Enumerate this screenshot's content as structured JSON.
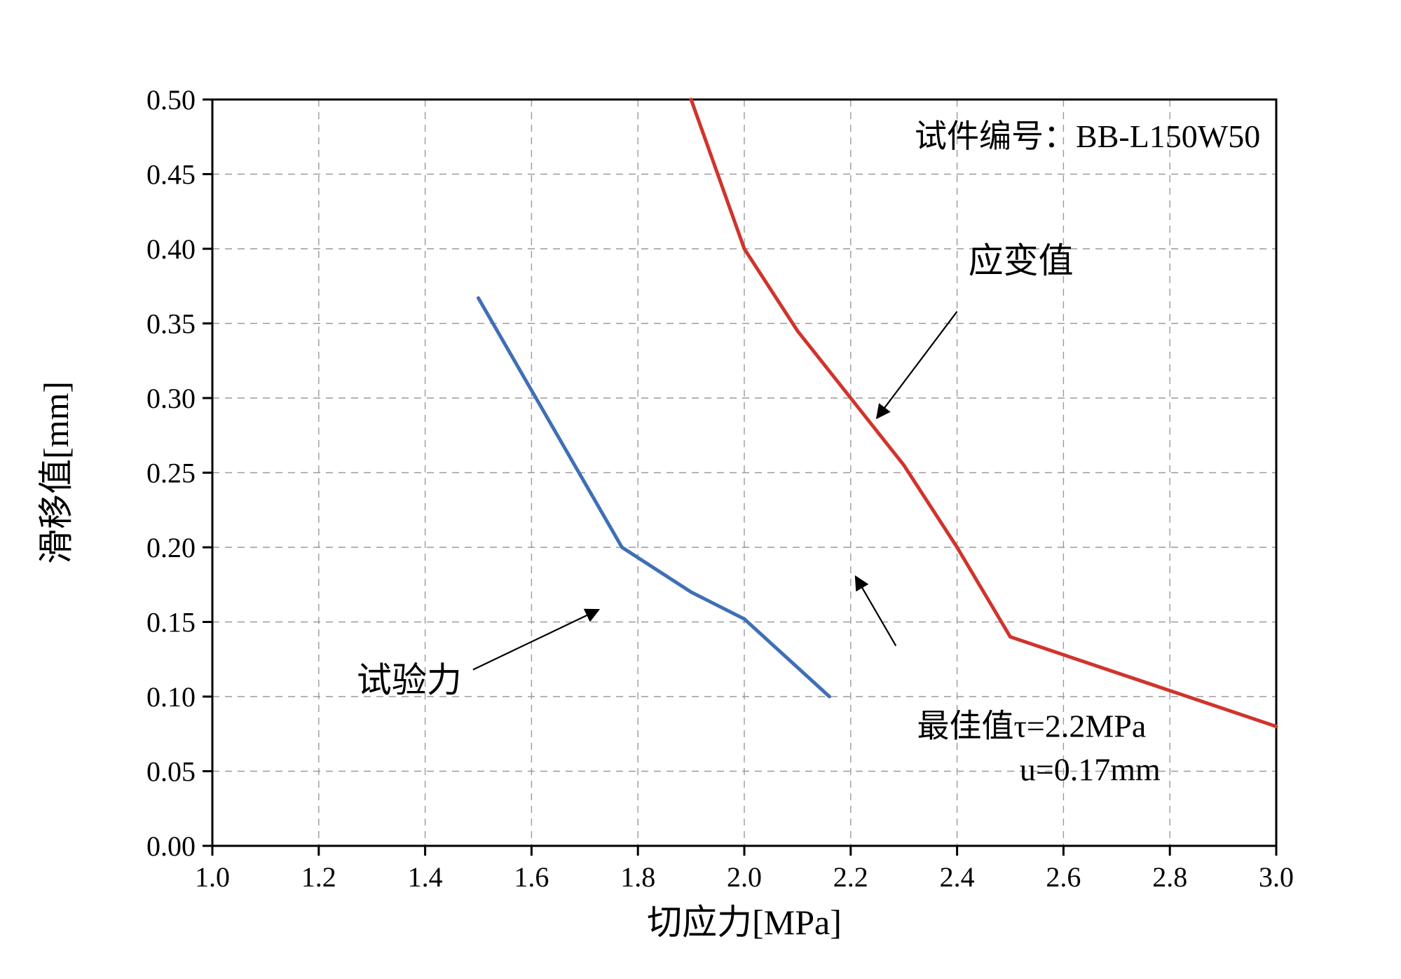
{
  "chart_data": {
    "type": "line",
    "title": "",
    "xlabel": "切应力[MPa]",
    "ylabel": "滑移值[mm]",
    "xlim": [
      1.0,
      3.0
    ],
    "ylim": [
      0.0,
      0.5
    ],
    "x_ticks": [
      1.0,
      1.2,
      1.4,
      1.6,
      1.8,
      2.0,
      2.2,
      2.4,
      2.6,
      2.8,
      3.0
    ],
    "x_tick_labels": [
      "1.0",
      "1.2",
      "1.4",
      "1.6",
      "1.8",
      "2.0",
      "2.2",
      "2.4",
      "2.6",
      "2.8",
      "3.0"
    ],
    "y_ticks": [
      0.0,
      0.05,
      0.1,
      0.15,
      0.2,
      0.25,
      0.3,
      0.35,
      0.4,
      0.45,
      0.5
    ],
    "y_tick_labels": [
      "0.00",
      "0.05",
      "0.10",
      "0.15",
      "0.20",
      "0.25",
      "0.30",
      "0.35",
      "0.40",
      "0.45",
      "0.50"
    ],
    "grid": "dashed",
    "legend_position": "none",
    "series": [
      {
        "name": "试验力",
        "name_en": "test-force-curve",
        "color": "#3f6fb5",
        "points": [
          [
            1.5,
            0.367
          ],
          [
            1.77,
            0.2
          ],
          [
            1.9,
            0.17
          ],
          [
            2.0,
            0.152
          ],
          [
            2.16,
            0.1
          ]
        ]
      },
      {
        "name": "应变值",
        "name_en": "strain-value-curve",
        "color": "#d0342c",
        "points": [
          [
            1.9,
            0.5
          ],
          [
            2.0,
            0.4
          ],
          [
            2.1,
            0.345
          ],
          [
            2.2,
            0.3
          ],
          [
            2.3,
            0.255
          ],
          [
            2.4,
            0.2
          ],
          [
            2.5,
            0.14
          ],
          [
            3.0,
            0.08
          ]
        ]
      }
    ],
    "annotations": [
      {
        "id": "specimen-label",
        "text": "试件编号：BB-L150W50",
        "x": 2.97,
        "y": 0.468,
        "anchor": "end",
        "size": 46
      },
      {
        "id": "red-series-label",
        "text": "应变值",
        "x": 2.52,
        "y": 0.384,
        "anchor": "middle",
        "size": 50
      },
      {
        "id": "blue-series-label",
        "text": "试验力",
        "x": 1.37,
        "y": 0.103,
        "anchor": "middle",
        "size": 50
      },
      {
        "id": "optimal-value-line1",
        "text": "最佳值τ=2.2MPa",
        "x": 2.54,
        "y": 0.073,
        "anchor": "middle",
        "size": 46
      },
      {
        "id": "optimal-value-line2",
        "text": "u=0.17mm",
        "x": 2.65,
        "y": 0.044,
        "anchor": "middle",
        "size": 46
      }
    ],
    "optimal_point": {
      "tau_mpa": 2.2,
      "u_mm": 0.17
    },
    "arrows": [
      {
        "id": "arrow-to-red-curve",
        "from": [
          2.4,
          0.358
        ],
        "to": [
          2.25,
          0.287
        ]
      },
      {
        "id": "arrow-to-blue-curve",
        "from": [
          1.49,
          0.118
        ],
        "to": [
          1.725,
          0.158
        ]
      },
      {
        "id": "arrow-to-optimal-point",
        "from": [
          2.285,
          0.134
        ],
        "to": [
          2.21,
          0.18
        ]
      }
    ],
    "colors": {
      "blue_line": "#3f6fb5",
      "red_line": "#d0342c",
      "grid": "#9a9a9a",
      "axis": "#000000",
      "background": "#ffffff"
    }
  }
}
